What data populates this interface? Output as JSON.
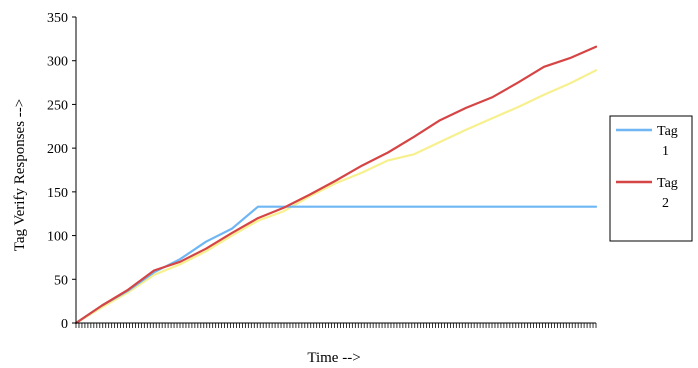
{
  "chart_data": {
    "type": "line",
    "title": "",
    "xlabel": "Time -->",
    "ylabel": "Tag Verify Responses -->",
    "ylim": [
      0,
      350
    ],
    "yticks": [
      0,
      50,
      100,
      150,
      200,
      250,
      300,
      350
    ],
    "x_tick_count": 175,
    "x_tick_labels_shown": false,
    "grid": false,
    "legend_position": "right",
    "x": [
      0,
      5,
      10,
      15,
      20,
      25,
      30,
      35,
      40,
      45,
      50,
      55,
      60,
      65,
      70,
      75,
      80,
      85,
      90,
      95,
      100
    ],
    "series": [
      {
        "name": "Tag 1",
        "color": "#6fb6f5",
        "values": [
          0,
          20,
          37,
          58,
          73,
          93,
          108,
          133,
          133,
          133,
          133,
          133,
          133,
          133,
          133,
          133,
          133,
          133,
          133,
          133,
          133
        ]
      },
      {
        "name": "Tag 2",
        "color": "#d64545",
        "values": [
          0,
          20,
          38,
          60,
          70,
          85,
          103,
          120,
          132,
          147,
          163,
          180,
          195,
          213,
          232,
          246,
          258,
          275,
          293,
          303,
          316
        ]
      },
      {
        "name": "",
        "color": "#f7f08e",
        "values": [
          0,
          18,
          35,
          55,
          67,
          82,
          100,
          117,
          128,
          145,
          160,
          172,
          186,
          193,
          207,
          221,
          234,
          247,
          261,
          274,
          289
        ]
      }
    ]
  }
}
